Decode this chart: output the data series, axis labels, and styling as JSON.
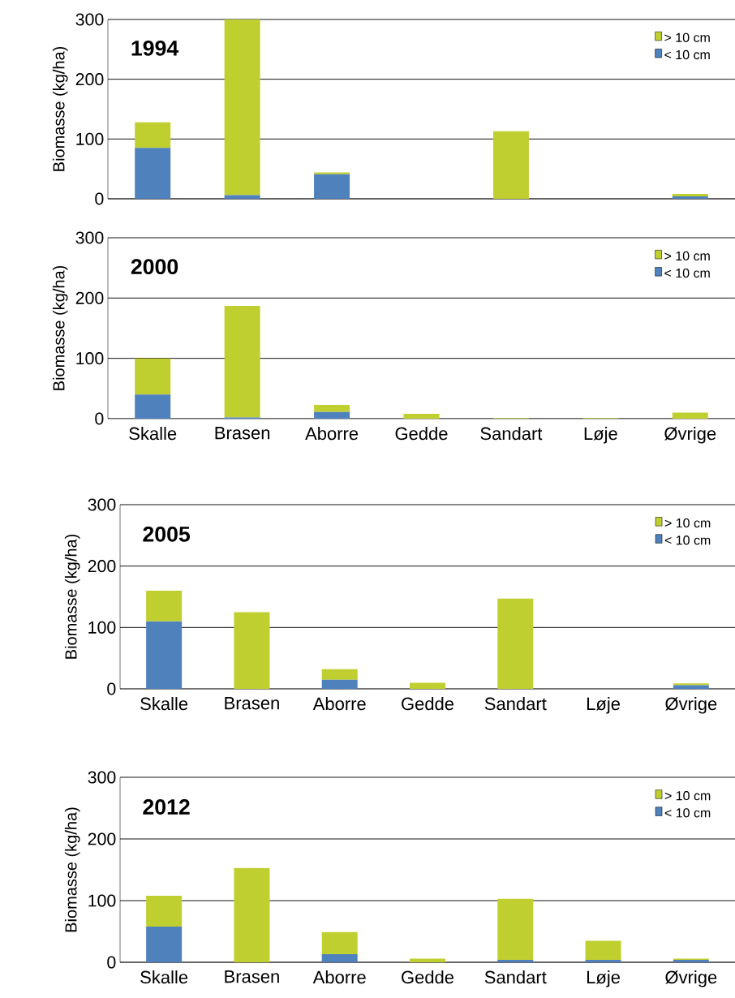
{
  "chart_data": [
    {
      "type": "bar",
      "title": "1994",
      "ylabel": "Biomasse (kg/ha)",
      "categories": [
        null,
        null,
        null,
        null,
        null,
        null,
        null
      ],
      "stacked": true,
      "ylim": [
        0,
        300
      ],
      "yticks": [
        0,
        100,
        200,
        300
      ],
      "grid": "y",
      "legend": "top right",
      "series": [
        {
          "name": "< 10 cm",
          "color": "#4f81bd",
          "values": [
            85,
            6,
            41,
            0,
            0,
            0,
            4
          ]
        },
        {
          "name": "> 10 cm",
          "color": "#c0cf30",
          "values": [
            43,
            294,
            3,
            0,
            113,
            0,
            4
          ]
        }
      ]
    },
    {
      "type": "bar",
      "title": "2000",
      "ylabel": "Biomasse (kg/ha)",
      "categories": [
        "Skalle",
        "Brasen",
        "Aborre",
        "Gedde",
        "Sandart",
        "Løje",
        "Øvrige"
      ],
      "stacked": true,
      "ylim": [
        0,
        300
      ],
      "yticks": [
        0,
        100,
        200,
        300
      ],
      "grid": "y",
      "legend": "top right",
      "series": [
        {
          "name": "< 10 cm",
          "color": "#4f81bd",
          "values": [
            40,
            2,
            11,
            0,
            0,
            0,
            0
          ]
        },
        {
          "name": "> 10 cm",
          "color": "#c0cf30",
          "values": [
            60,
            185,
            12,
            8,
            1,
            1,
            10
          ]
        }
      ]
    },
    {
      "type": "bar",
      "title": "2005",
      "ylabel": "Biomasse (kg/ha)",
      "categories": [
        "Skalle",
        "Brasen",
        "Aborre",
        "Gedde",
        "Sandart",
        "Løje",
        "Øvrige"
      ],
      "stacked": true,
      "ylim": [
        0,
        300
      ],
      "yticks": [
        0,
        100,
        200,
        300
      ],
      "grid": "y",
      "legend": "top right",
      "series": [
        {
          "name": "< 10 cm",
          "color": "#4f81bd",
          "values": [
            110,
            0,
            15,
            0,
            0,
            0,
            6
          ]
        },
        {
          "name": "> 10 cm",
          "color": "#c0cf30",
          "values": [
            50,
            125,
            17,
            10,
            147,
            0,
            3
          ]
        }
      ]
    },
    {
      "type": "bar",
      "title": "2012",
      "ylabel": "Biomasse (kg/ha)",
      "categories": [
        "Skalle",
        "Brasen",
        "Aborre",
        "Gedde",
        "Sandart",
        "Løje",
        "Øvrige"
      ],
      "stacked": true,
      "ylim": [
        0,
        300
      ],
      "yticks": [
        0,
        100,
        200,
        300
      ],
      "grid": "y",
      "legend": "top right",
      "series": [
        {
          "name": "< 10 cm",
          "color": "#4f81bd",
          "values": [
            58,
            0,
            13,
            0,
            4,
            4,
            4
          ]
        },
        {
          "name": "> 10 cm",
          "color": "#c0cf30",
          "values": [
            50,
            153,
            36,
            6,
            99,
            31,
            2
          ]
        }
      ]
    }
  ]
}
